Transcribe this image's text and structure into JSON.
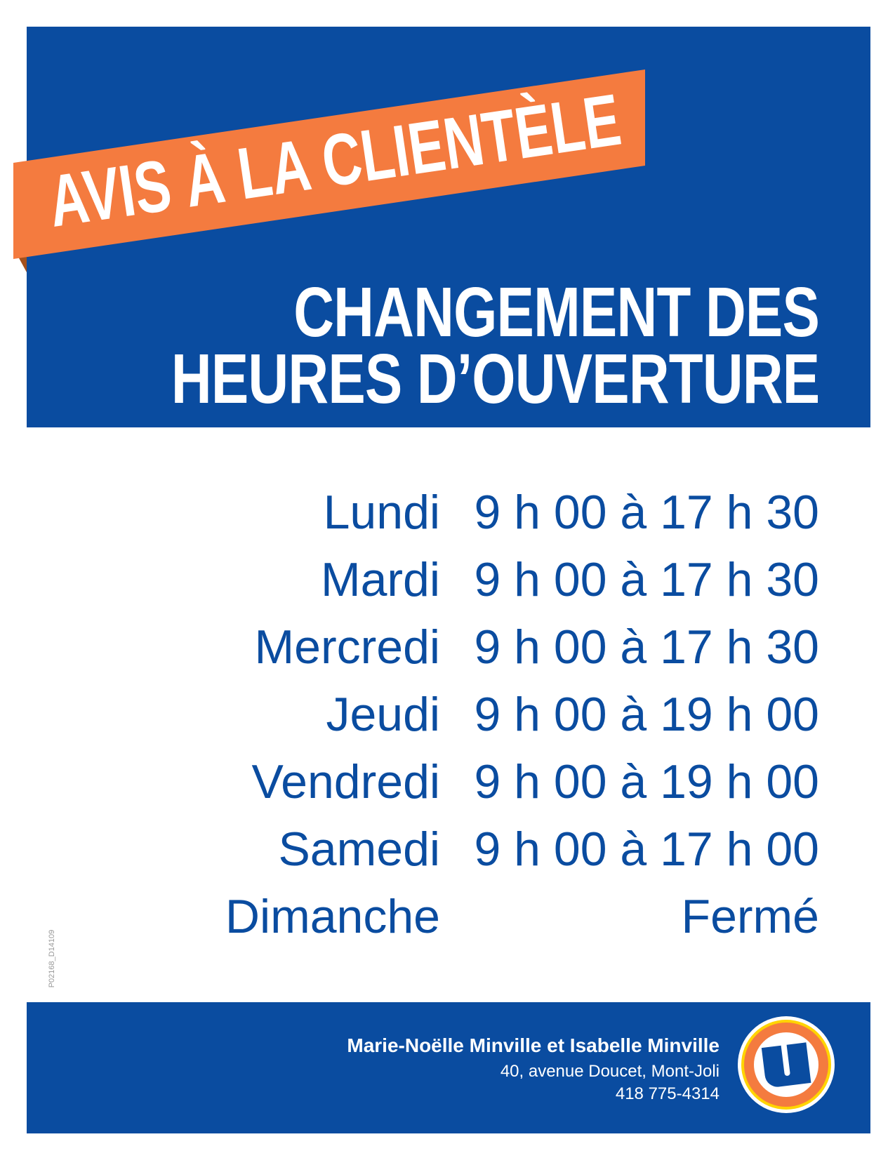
{
  "banner": {
    "text": "AVIS À LA CLIENTÈLE"
  },
  "headline": {
    "line1": "CHANGEMENT DES",
    "line2": "HEURES D’OUVERTURE"
  },
  "schedule": [
    {
      "day": "Lundi",
      "hours": "9 h 00 à 17 h 30"
    },
    {
      "day": "Mardi",
      "hours": "9 h 00 à 17 h 30"
    },
    {
      "day": "Mercredi",
      "hours": "9 h 00 à 17 h 30"
    },
    {
      "day": "Jeudi",
      "hours": "9 h 00 à 19 h 00"
    },
    {
      "day": "Vendredi",
      "hours": "9 h 00 à 19 h 00"
    },
    {
      "day": "Samedi",
      "hours": "9 h 00 à 17 h 00"
    },
    {
      "day": "Dimanche",
      "hours": "Fermé"
    }
  ],
  "side_code": "P02168_D14109",
  "footer": {
    "owners": "Marie-Noëlle Minville et Isabelle Minville",
    "address": "40, avenue Doucet, Mont-Joli",
    "phone": "418 775-4314",
    "logo": {
      "letter": "U",
      "icon": "uniprix-u-logo"
    }
  },
  "colors": {
    "brand_blue": "#0a4ca0",
    "accent_orange": "#f47b3f",
    "logo_yellow": "#ffd400"
  }
}
